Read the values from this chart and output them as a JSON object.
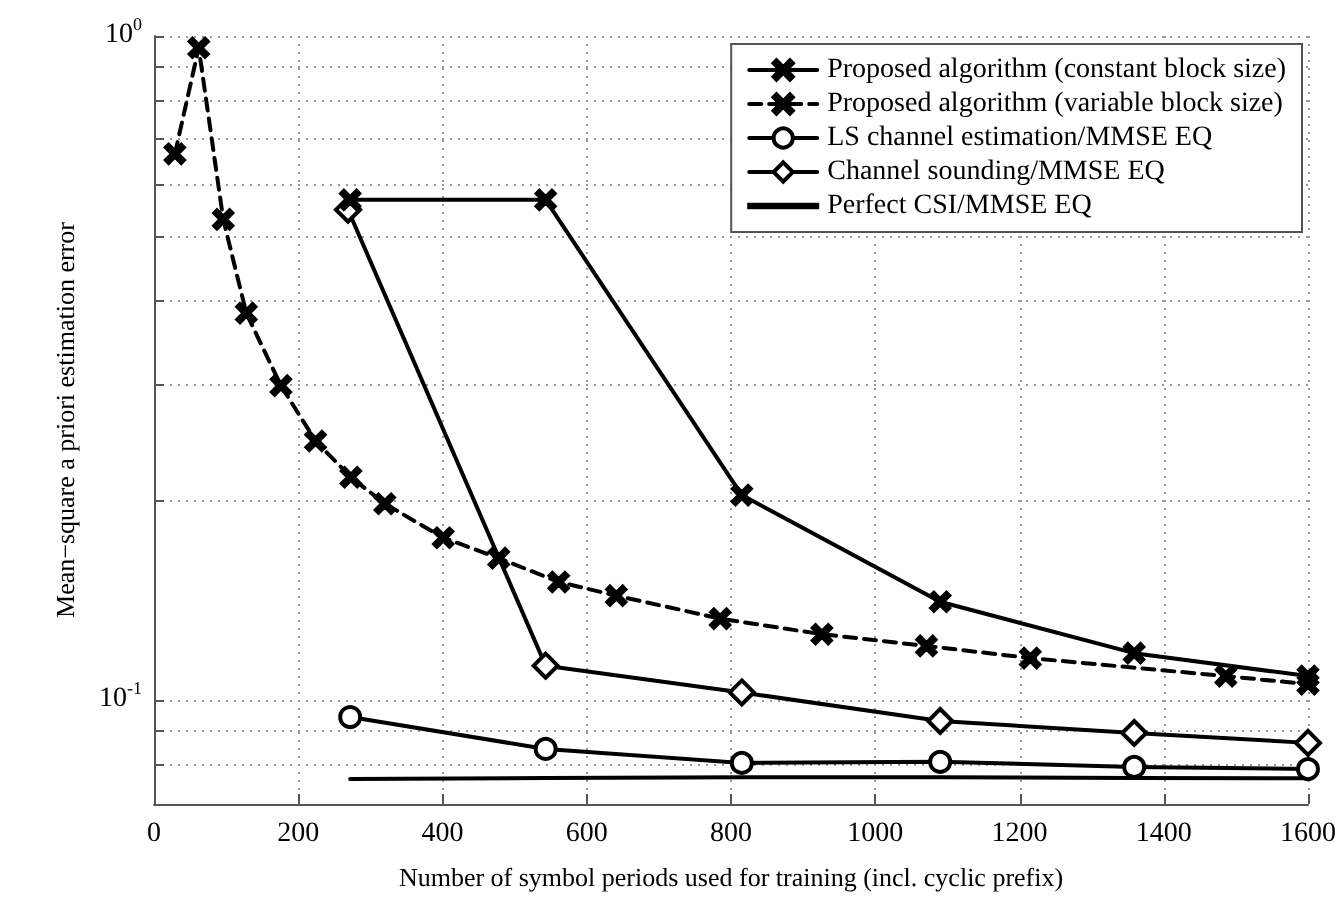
{
  "chart_data": {
    "type": "line",
    "xlabel": "Number of symbol periods used for training (incl. cyclic prefix)",
    "ylabel": "Mean−square a priori estimation error",
    "xlim": [
      0,
      1600
    ],
    "xticks": [
      0,
      200,
      400,
      600,
      800,
      1000,
      1200,
      1400,
      1600
    ],
    "ylim": [
      0.07,
      1
    ],
    "log": "y",
    "yticks": [
      {
        "value": 0.08,
        "label": null
      },
      {
        "value": 0.09,
        "label": null
      },
      {
        "value": 0.1,
        "label": "10$^{-1}$"
      },
      {
        "value": 0.2,
        "label": null
      },
      {
        "value": 0.3,
        "label": null
      },
      {
        "value": 0.4,
        "label": null
      },
      {
        "value": 0.5,
        "label": null
      },
      {
        "value": 0.6,
        "label": null
      },
      {
        "value": 0.7,
        "label": null
      },
      {
        "value": 0.8,
        "label": null
      },
      {
        "value": 0.9,
        "label": null
      },
      {
        "value": 1,
        "label": "10$^{0}$"
      }
    ],
    "grid": true,
    "legend": "top right",
    "series": [
      {
        "name": "Proposed algorithm (constant block size)",
        "color": "#000000",
        "marker": "cross",
        "line_style": "solid",
        "x": [
          272,
          543,
          815,
          1090,
          1359,
          1600
        ],
        "values": [
          0.567,
          0.567,
          0.204,
          0.141,
          0.118,
          0.109
        ]
      },
      {
        "name": "Proposed algorithm (variable block size)",
        "color": "#000000",
        "marker": "cross",
        "line_style": "dashed",
        "x": [
          29,
          62,
          96,
          128,
          176,
          224,
          273,
          320,
          401,
          478,
          561,
          641,
          785,
          926,
          1071,
          1215,
          1486,
          1600
        ],
        "values": [
          0.665,
          0.96,
          0.53,
          0.383,
          0.298,
          0.246,
          0.217,
          0.198,
          0.176,
          0.164,
          0.151,
          0.144,
          0.133,
          0.126,
          0.121,
          0.116,
          0.109,
          0.106
        ]
      },
      {
        "name": "LS channel estimation/MMSE EQ",
        "color": "#000000",
        "marker": "circle",
        "line_style": "solid",
        "x": [
          272,
          543,
          815,
          1090,
          1359,
          1600
        ],
        "values": [
          0.0946,
          0.0847,
          0.0807,
          0.081,
          0.0796,
          0.079
        ]
      },
      {
        "name": "Channel sounding/MMSE EQ",
        "color": "#000000",
        "marker": "diamond",
        "line_style": "solid",
        "x": [
          269,
          543,
          815,
          1090,
          1359,
          1600
        ],
        "values": [
          0.548,
          0.113,
          0.103,
          0.0933,
          0.0895,
          0.0865
        ]
      },
      {
        "name": "Perfect CSI/MMSE EQ",
        "color": "#000000",
        "marker": "none",
        "line_style": "solid",
        "x": [
          272,
          543,
          815,
          1090,
          1359,
          1600
        ],
        "values": [
          0.0763,
          0.0766,
          0.0768,
          0.0768,
          0.0766,
          0.0765
        ]
      }
    ]
  }
}
